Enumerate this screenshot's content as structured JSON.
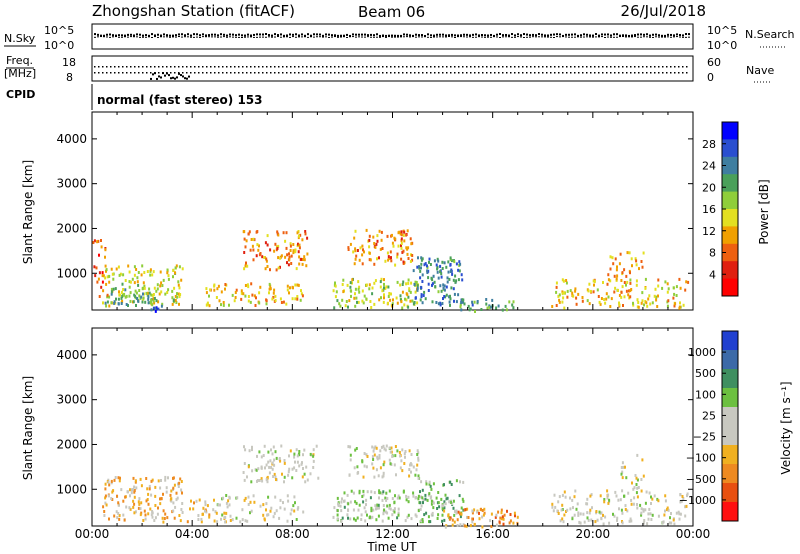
{
  "header": {
    "title": "Zhongshan Station (fitACF)",
    "beam": "Beam 06",
    "date": "26/Jul/2018"
  },
  "status_panels": {
    "nsky_label": "N.Sky",
    "left_ticks_top": [
      "10^5",
      "10^0"
    ],
    "nsearch_label": "N.Search",
    "right_ticks_top": [
      "10^5",
      "10^0"
    ],
    "freq_label_1": "Freq.",
    "freq_label_2": "[MHz]",
    "freq_ticks": [
      "18",
      "8"
    ],
    "nave_label": "Nave",
    "nave_ticks": [
      "60",
      "0"
    ],
    "cpid_label": "CPID",
    "cpid_value": "normal (fast stereo) 153"
  },
  "colorbars": {
    "power": {
      "label": "Power [dB]",
      "ticks": [
        "28",
        "24",
        "20",
        "16",
        "12",
        "8",
        "4"
      ],
      "colors": [
        "#0000ff",
        "#2a4fd0",
        "#3f7ea0",
        "#4aa05a",
        "#8fce3a",
        "#e3e020",
        "#f0a000",
        "#ee6010",
        "#e02010",
        "#ff0000"
      ]
    },
    "velocity": {
      "label": "Velocity [m s⁻¹]",
      "ticks": [
        "1000",
        "500",
        "100",
        "25",
        "−25",
        "−100",
        "−500",
        "−1000"
      ],
      "colors": [
        "#2040d0",
        "#3c6aa8",
        "#3f8f60",
        "#6cc040",
        "#c8c8c0",
        "#c8c8c0",
        "#f0b020",
        "#ee8a20",
        "#e85010",
        "#ff1010"
      ]
    }
  },
  "axes": {
    "ylabel": "Slant Range [km]",
    "yticks": [
      "4000",
      "3000",
      "2000",
      "1000"
    ],
    "xlabel": "Time UT",
    "xticks": [
      "00:00",
      "04:00",
      "08:00",
      "12:00",
      "16:00",
      "20:00",
      "00:00"
    ]
  },
  "chart_data": [
    {
      "type": "heatmap",
      "title": "Power [dB]",
      "xlabel": "",
      "ylabel": "Slant Range [km]",
      "xlim": [
        0,
        24
      ],
      "ylim": [
        180,
        4600
      ],
      "clim": [
        0,
        30
      ],
      "blobs": [
        {
          "t0": 0.4,
          "t1": 3.6,
          "r0": 300,
          "r1": 1200,
          "level": 14,
          "density": 0.6
        },
        {
          "t0": 0.5,
          "t1": 2.6,
          "r0": 300,
          "r1": 700,
          "level": 20,
          "density": 0.7
        },
        {
          "t0": 1.8,
          "t1": 2.8,
          "r0": 180,
          "r1": 350,
          "level": 26,
          "density": 0.6
        },
        {
          "t0": 4.5,
          "t1": 8.4,
          "r0": 300,
          "r1": 800,
          "level": 12,
          "density": 0.55
        },
        {
          "t0": 6.0,
          "t1": 8.6,
          "r0": 1100,
          "r1": 2000,
          "level": 9,
          "density": 0.55
        },
        {
          "t0": 9.6,
          "t1": 13.0,
          "r0": 250,
          "r1": 900,
          "level": 15,
          "density": 0.7
        },
        {
          "t0": 10.2,
          "t1": 12.8,
          "r0": 1200,
          "r1": 2000,
          "level": 9,
          "density": 0.6
        },
        {
          "t0": 12.8,
          "t1": 14.8,
          "r0": 300,
          "r1": 1400,
          "level": 22,
          "density": 0.75
        },
        {
          "t0": 14.6,
          "t1": 16.8,
          "r0": 180,
          "r1": 450,
          "level": 20,
          "density": 0.7
        },
        {
          "t0": 18.3,
          "t1": 23.8,
          "r0": 250,
          "r1": 900,
          "level": 12,
          "density": 0.5
        },
        {
          "t0": 20.5,
          "t1": 22.0,
          "r0": 800,
          "r1": 1500,
          "level": 10,
          "density": 0.4
        },
        {
          "t0": 0.0,
          "t1": 0.6,
          "r0": 500,
          "r1": 1800,
          "level": 7,
          "density": 0.4
        }
      ]
    },
    {
      "type": "heatmap",
      "title": "Velocity [m s⁻¹]",
      "xlabel": "Time UT",
      "ylabel": "Slant Range [km]",
      "xlim": [
        0,
        24
      ],
      "ylim": [
        180,
        4600
      ],
      "clim": [
        -1000,
        1000
      ],
      "blobs": [
        {
          "t0": 0.4,
          "t1": 3.6,
          "r0": 300,
          "r1": 1300,
          "level": -300,
          "density": 0.6
        },
        {
          "t0": 3.4,
          "t1": 5.5,
          "r0": 300,
          "r1": 800,
          "level": -200,
          "density": 0.45
        },
        {
          "t0": 4.8,
          "t1": 8.4,
          "r0": 300,
          "r1": 900,
          "level": -40,
          "density": 0.4
        },
        {
          "t0": 6.0,
          "t1": 9.0,
          "r0": 1200,
          "r1": 2000,
          "level": 0,
          "density": 0.55
        },
        {
          "t0": 9.6,
          "t1": 13.2,
          "r0": 300,
          "r1": 1000,
          "level": 150,
          "density": 0.7
        },
        {
          "t0": 10.2,
          "t1": 13.0,
          "r0": 1300,
          "r1": 2000,
          "level": 0,
          "density": 0.6
        },
        {
          "t0": 13.0,
          "t1": 14.8,
          "r0": 300,
          "r1": 1300,
          "level": 300,
          "density": 0.6
        },
        {
          "t0": 14.0,
          "t1": 17.0,
          "r0": 180,
          "r1": 600,
          "level": -400,
          "density": 0.75
        },
        {
          "t0": 18.3,
          "t1": 23.8,
          "r0": 250,
          "r1": 1000,
          "level": -30,
          "density": 0.5
        },
        {
          "t0": 21.0,
          "t1": 22.0,
          "r0": 1000,
          "r1": 1800,
          "level": 20,
          "density": 0.35
        }
      ]
    }
  ]
}
